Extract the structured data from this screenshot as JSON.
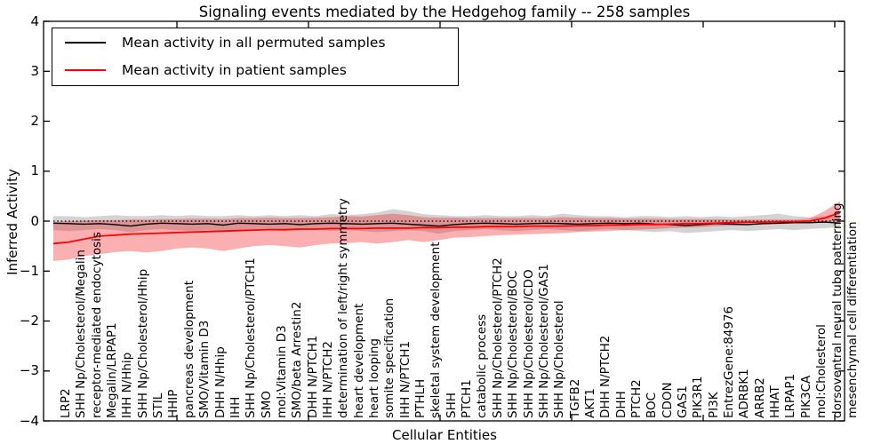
{
  "title": "Signaling events mediated by the Hedgehog family -- 258 samples",
  "legend": [
    {
      "label": "Mean activity in all permuted samples",
      "color": "#000000"
    },
    {
      "label": "Mean activity in patient samples",
      "color": "#ff0000"
    }
  ],
  "axes": {
    "ylabel": "Inferred Activity",
    "xlabel": "Cellular Entities",
    "yticks": [
      {
        "label": "4",
        "value": 4
      },
      {
        "label": "3",
        "value": 3
      },
      {
        "label": "2",
        "value": 2
      },
      {
        "label": "1",
        "value": 1
      },
      {
        "label": "0",
        "value": 0
      },
      {
        "label": "−1",
        "value": -1
      },
      {
        "label": "−2",
        "value": -2
      },
      {
        "label": "−3",
        "value": -3
      },
      {
        "label": "−4",
        "value": -4
      }
    ]
  },
  "chart_data": {
    "type": "line",
    "title": "Signaling events mediated by the Hedgehog family -- 258 samples",
    "xlabel": "Cellular Entities",
    "ylabel": "Inferred Activity",
    "ylim": [
      -4,
      4
    ],
    "grid": false,
    "legend_position": "upper left",
    "zero_reference_line": 0,
    "categories": [
      "LRP2",
      "SHH Np/Cholesterol/Megalin",
      "receptor-mediated endocytosis",
      "Megalin/LRPAP1",
      "IHH N/Hhip",
      "SHH Np/Cholesterol/Hhip",
      "STIL",
      "HHIP",
      "pancreas development",
      "SMO/Vitamin D3",
      "DHH N/Hhip",
      "IHH",
      "SHH Np/Cholesterol/PTCH1",
      "SMO",
      "mol:Vitamin D3",
      "SMO/beta Arrestin2",
      "DHH N/PTCH1",
      "IHH N/PTCH2",
      "determination of left/right symmetry",
      "heart development",
      "heart looping",
      "somite specification",
      "IHH N/PTCH1",
      "PTHLH",
      "skeletal system development",
      "SHH",
      "PTCH1",
      "catabolic process",
      "SHH Np/Cholesterol/PTCH2",
      "SHH Np/Cholesterol/BOC",
      "SHH Np/Cholesterol/CDO",
      "SHH Np/Cholesterol/GAS1",
      "SHH Np/Cholesterol",
      "TGFB2",
      "AKT1",
      "DHH N/PTCH2",
      "DHH",
      "PTCH2",
      "BOC",
      "CDON",
      "GAS1",
      "PIK3R1",
      "PI3K",
      "EntrezGene:84976",
      "ADRBK1",
      "ARRB2",
      "HHAT",
      "LRPAP1",
      "PIK3CA",
      "mol:Cholesterol",
      "dorsoventral neural tube patterning",
      "mesenchymal cell differentiation"
    ],
    "series": [
      {
        "name": "Mean activity in all permuted samples",
        "color": "#000000",
        "values": [
          -0.04,
          -0.05,
          -0.06,
          -0.05,
          -0.07,
          -0.1,
          -0.06,
          -0.04,
          -0.05,
          -0.06,
          -0.05,
          -0.08,
          -0.04,
          -0.05,
          -0.06,
          -0.05,
          -0.07,
          -0.05,
          -0.04,
          -0.05,
          -0.06,
          -0.05,
          -0.04,
          -0.06,
          -0.08,
          -0.1,
          -0.07,
          -0.05,
          -0.04,
          -0.05,
          -0.06,
          -0.05,
          -0.04,
          -0.05,
          -0.06,
          -0.05,
          -0.04,
          -0.05,
          -0.04,
          -0.06,
          -0.07,
          -0.09,
          -0.07,
          -0.05,
          -0.06,
          -0.07,
          -0.05,
          -0.04,
          -0.03,
          -0.03,
          -0.02,
          -0.04
        ]
      },
      {
        "name": "Mean activity in patient samples",
        "color": "#ff0000",
        "values": [
          -0.45,
          -0.42,
          -0.36,
          -0.3,
          -0.28,
          -0.26,
          -0.25,
          -0.24,
          -0.23,
          -0.22,
          -0.21,
          -0.2,
          -0.19,
          -0.18,
          -0.17,
          -0.17,
          -0.16,
          -0.16,
          -0.15,
          -0.15,
          -0.15,
          -0.14,
          -0.14,
          -0.14,
          -0.13,
          -0.13,
          -0.12,
          -0.12,
          -0.11,
          -0.11,
          -0.11,
          -0.1,
          -0.1,
          -0.1,
          -0.09,
          -0.09,
          -0.08,
          -0.08,
          -0.07,
          -0.07,
          -0.06,
          -0.05,
          -0.05,
          -0.04,
          -0.03,
          -0.02,
          -0.02,
          -0.01,
          -0.01,
          0.0,
          0.06,
          0.17
        ]
      }
    ],
    "bands": [
      {
        "name": "permuted samples range",
        "color": "rgba(128,128,128,0.35)",
        "upper": [
          0.1,
          0.1,
          0.08,
          0.1,
          0.12,
          0.1,
          0.1,
          0.12,
          0.1,
          0.12,
          0.1,
          0.1,
          0.12,
          0.1,
          0.12,
          0.1,
          0.12,
          0.1,
          0.14,
          0.12,
          0.14,
          0.17,
          0.24,
          0.2,
          0.14,
          0.12,
          0.1,
          0.1,
          0.12,
          0.1,
          0.1,
          0.12,
          0.1,
          0.15,
          0.12,
          0.1,
          0.1,
          0.08,
          0.1,
          0.1,
          0.08,
          0.1,
          0.08,
          0.1,
          0.08,
          0.1,
          0.12,
          0.15,
          0.1,
          0.08,
          0.1,
          0.08
        ],
        "lower": [
          -0.18,
          -0.2,
          -0.18,
          -0.16,
          -0.18,
          -0.22,
          -0.18,
          -0.16,
          -0.18,
          -0.2,
          -0.18,
          -0.22,
          -0.18,
          -0.16,
          -0.18,
          -0.2,
          -0.18,
          -0.16,
          -0.2,
          -0.18,
          -0.2,
          -0.22,
          -0.2,
          -0.18,
          -0.2,
          -0.25,
          -0.2,
          -0.18,
          -0.16,
          -0.18,
          -0.2,
          -0.18,
          -0.16,
          -0.18,
          -0.2,
          -0.18,
          -0.16,
          -0.18,
          -0.2,
          -0.22,
          -0.2,
          -0.24,
          -0.22,
          -0.2,
          -0.18,
          -0.2,
          -0.18,
          -0.16,
          -0.18,
          -0.16,
          -0.14,
          -0.12
        ]
      },
      {
        "name": "patient samples range",
        "color": "rgba(240,30,30,0.35)",
        "upper": [
          -0.02,
          0.0,
          0.01,
          0.02,
          0.02,
          0.03,
          0.03,
          0.04,
          0.04,
          0.05,
          0.05,
          0.04,
          0.06,
          0.06,
          0.07,
          0.06,
          0.06,
          0.07,
          0.08,
          0.1,
          0.09,
          0.12,
          0.15,
          0.12,
          0.08,
          0.07,
          0.07,
          0.06,
          0.06,
          0.06,
          0.06,
          0.06,
          0.06,
          0.08,
          0.07,
          0.06,
          0.06,
          0.05,
          0.05,
          0.05,
          0.04,
          0.04,
          0.04,
          0.04,
          0.03,
          0.03,
          0.03,
          0.03,
          0.03,
          0.05,
          0.2,
          0.4
        ],
        "lower": [
          -0.8,
          -0.77,
          -0.7,
          -0.66,
          -0.62,
          -0.6,
          -0.63,
          -0.6,
          -0.55,
          -0.53,
          -0.55,
          -0.6,
          -0.55,
          -0.5,
          -0.48,
          -0.5,
          -0.53,
          -0.48,
          -0.45,
          -0.44,
          -0.42,
          -0.45,
          -0.42,
          -0.38,
          -0.42,
          -0.38,
          -0.33,
          -0.32,
          -0.3,
          -0.28,
          -0.27,
          -0.26,
          -0.25,
          -0.24,
          -0.22,
          -0.21,
          -0.2,
          -0.18,
          -0.17,
          -0.16,
          -0.14,
          -0.13,
          -0.12,
          -0.1,
          -0.09,
          -0.08,
          -0.07,
          -0.06,
          -0.05,
          -0.05,
          -0.03,
          -0.02
        ]
      }
    ]
  }
}
